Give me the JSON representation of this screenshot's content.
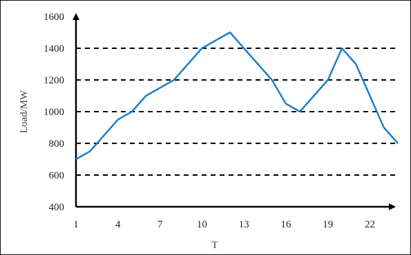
{
  "chart_data": {
    "type": "line",
    "title": "",
    "xlabel": "T",
    "ylabel": "Load/MW",
    "xlim": [
      1,
      24
    ],
    "ylim": [
      400,
      1600
    ],
    "x_ticks": [
      1,
      4,
      7,
      10,
      13,
      16,
      19,
      22
    ],
    "y_ticks": [
      400,
      600,
      800,
      1000,
      1200,
      1400,
      1600
    ],
    "dashed_reference_lines": [
      600,
      800,
      1000,
      1200,
      1400
    ],
    "grid": false,
    "legend": "none",
    "series": [
      {
        "color": "#1f7fc7",
        "x": [
          1,
          2,
          3,
          4,
          5,
          6,
          7,
          8,
          9,
          10,
          11,
          12,
          13,
          14,
          15,
          16,
          17,
          18,
          19,
          20,
          21,
          22,
          23,
          24
        ],
        "values": [
          700,
          750,
          850,
          950,
          1000,
          1100,
          1150,
          1200,
          1300,
          1400,
          1450,
          1500,
          1400,
          1300,
          1200,
          1050,
          1000,
          1100,
          1200,
          1400,
          1300,
          1100,
          900,
          800
        ]
      }
    ]
  }
}
